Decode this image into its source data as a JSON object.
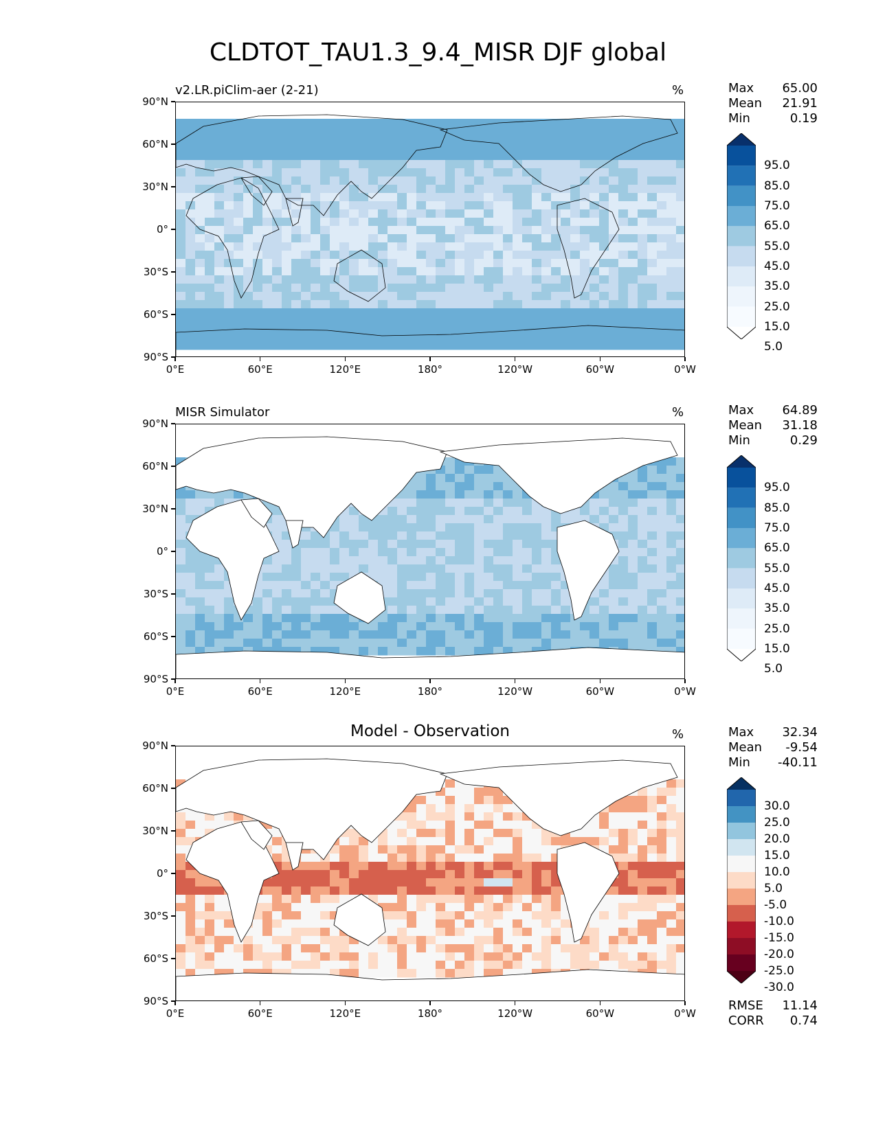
{
  "figure_title": "CLDTOT_TAU1.3_9.4_MISR DJF global",
  "lat_ticks": [
    "90°N",
    "60°N",
    "30°N",
    "0°",
    "30°S",
    "60°S",
    "90°S"
  ],
  "lon_ticks": [
    "0°E",
    "60°E",
    "120°E",
    "180°",
    "120°W",
    "60°W",
    "0°W"
  ],
  "colors": {
    "blues": [
      "#f7fbff",
      "#deebf7",
      "#c6dbef",
      "#9ecae1",
      "#6baed6",
      "#4292c6",
      "#2171b5",
      "#08519c",
      "#08306b"
    ],
    "diff": [
      "#67001f",
      "#b2182b",
      "#d6604d",
      "#f4a582",
      "#fddbc7",
      "#f7f7f7",
      "#d1e5f0",
      "#92c5de",
      "#4393c3",
      "#2166ac",
      "#053061"
    ]
  },
  "panels": [
    {
      "id": "model",
      "left_title": "v2.LR.piClim-aer (2-21)",
      "center_title": "",
      "units": "%",
      "stats": [
        {
          "label": "Max",
          "value": "65.00"
        },
        {
          "label": "Mean",
          "value": "21.91"
        },
        {
          "label": "Min",
          "value": "0.19"
        }
      ],
      "colorbar_labels": [
        "95.0",
        "85.0",
        "75.0",
        "65.0",
        "55.0",
        "45.0",
        "35.0",
        "25.0",
        "15.0",
        "5.0"
      ],
      "extra_stats": []
    },
    {
      "id": "obs",
      "left_title": "MISR Simulator",
      "center_title": "",
      "units": "%",
      "stats": [
        {
          "label": "Max",
          "value": "64.89"
        },
        {
          "label": "Mean",
          "value": "31.18"
        },
        {
          "label": "Min",
          "value": "0.29"
        }
      ],
      "colorbar_labels": [
        "95.0",
        "85.0",
        "75.0",
        "65.0",
        "55.0",
        "45.0",
        "35.0",
        "25.0",
        "15.0",
        "5.0"
      ],
      "extra_stats": []
    },
    {
      "id": "diff",
      "left_title": "",
      "center_title": "Model - Observation",
      "units": "%",
      "stats": [
        {
          "label": "Max",
          "value": "32.34"
        },
        {
          "label": "Mean",
          "value": "-9.54"
        },
        {
          "label": "Min",
          "value": "-40.11"
        }
      ],
      "colorbar_labels": [
        "30.0",
        "25.0",
        "20.0",
        "15.0",
        "10.0",
        "5.0",
        "-5.0",
        "-10.0",
        "-15.0",
        "-20.0",
        "-25.0",
        "-30.0"
      ],
      "extra_stats": [
        {
          "label": "RMSE",
          "value": "11.14"
        },
        {
          "label": "CORR",
          "value": "0.74"
        }
      ]
    }
  ]
}
